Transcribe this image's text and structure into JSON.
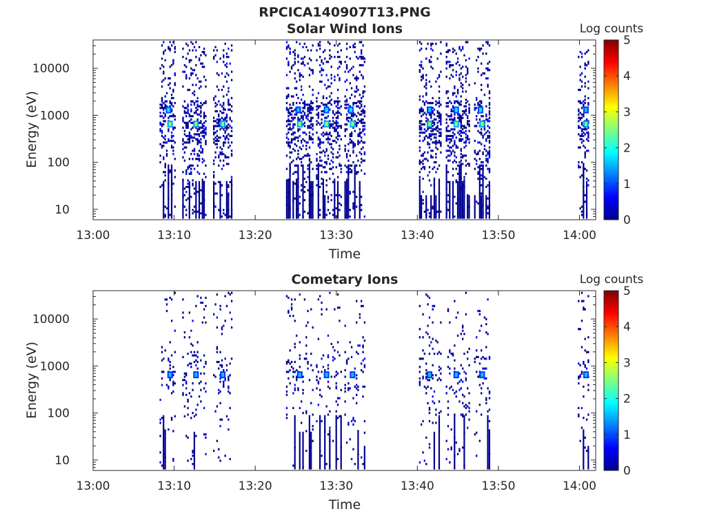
{
  "figure_title": "RPCICA140907T13.PNG",
  "colormap": [
    "#00008f",
    "#0000ff",
    "#0080ff",
    "#00ffff",
    "#80ff80",
    "#ffff00",
    "#ff8000",
    "#ff0000",
    "#800000"
  ],
  "chart_data": [
    {
      "type": "heatmap",
      "title": "Solar Wind Ions",
      "xlabel": "Time",
      "ylabel": "Energy (eV)",
      "x_ticks": [
        "13:00",
        "13:10",
        "13:20",
        "13:30",
        "13:40",
        "13:50",
        "14:00"
      ],
      "y_ticks": [
        "10",
        "100",
        "1000",
        "10000"
      ],
      "y_scale": "log",
      "ylim": [
        6,
        40000
      ],
      "colorbar": {
        "label": "Log counts",
        "ticks": [
          "0",
          "1",
          "2",
          "3",
          "4",
          "5"
        ],
        "range": [
          0,
          5
        ]
      },
      "scans": [
        {
          "t": [
            8.2,
            10.0
          ],
          "sparse": 1.0
        },
        {
          "t": [
            11.0,
            13.8
          ],
          "sparse": 1.0
        },
        {
          "t": [
            14.8,
            17.0
          ],
          "sparse": 1.0
        },
        {
          "t": [
            23.8,
            27.0
          ],
          "sparse": 1.0
        },
        {
          "t": [
            27.5,
            30.5
          ],
          "sparse": 1.0
        },
        {
          "t": [
            31.0,
            33.5
          ],
          "sparse": 1.0
        },
        {
          "t": [
            40.2,
            43.0
          ],
          "sparse": 1.0
        },
        {
          "t": [
            43.5,
            46.5
          ],
          "sparse": 1.0
        },
        {
          "t": [
            47.0,
            49.0
          ],
          "sparse": 1.0
        },
        {
          "t": [
            59.8,
            61.2
          ],
          "sparse": 1.0
        }
      ],
      "peaks": [
        {
          "time": 9.5,
          "energy": 650,
          "log_counts": 2.6
        },
        {
          "time": 9.3,
          "energy": 1300,
          "log_counts": 1.8
        },
        {
          "time": 12.7,
          "energy": 650,
          "log_counts": 2.5
        },
        {
          "time": 16.0,
          "energy": 650,
          "log_counts": 2.5
        },
        {
          "time": 25.5,
          "energy": 650,
          "log_counts": 2.6
        },
        {
          "time": 25.3,
          "energy": 1300,
          "log_counts": 1.6
        },
        {
          "time": 28.8,
          "energy": 650,
          "log_counts": 2.7
        },
        {
          "time": 28.8,
          "energy": 1300,
          "log_counts": 1.8
        },
        {
          "time": 32.0,
          "energy": 650,
          "log_counts": 2.7
        },
        {
          "time": 31.8,
          "energy": 1300,
          "log_counts": 1.8
        },
        {
          "time": 41.5,
          "energy": 650,
          "log_counts": 2.5
        },
        {
          "time": 41.5,
          "energy": 1300,
          "log_counts": 1.6
        },
        {
          "time": 44.8,
          "energy": 650,
          "log_counts": 2.6
        },
        {
          "time": 44.8,
          "energy": 1300,
          "log_counts": 1.8
        },
        {
          "time": 48.0,
          "energy": 650,
          "log_counts": 2.6
        },
        {
          "time": 47.8,
          "energy": 1300,
          "log_counts": 1.8
        },
        {
          "time": 60.8,
          "energy": 650,
          "log_counts": 2.4
        },
        {
          "time": 60.8,
          "energy": 1300,
          "log_counts": 1.6
        }
      ]
    },
    {
      "type": "heatmap",
      "title": "Cometary Ions",
      "xlabel": "Time",
      "ylabel": "Energy (eV)",
      "x_ticks": [
        "13:00",
        "13:10",
        "13:20",
        "13:30",
        "13:40",
        "13:50",
        "14:00"
      ],
      "y_ticks": [
        "10",
        "100",
        "1000",
        "10000"
      ],
      "y_scale": "log",
      "ylim": [
        6,
        40000
      ],
      "colorbar": {
        "label": "Log counts",
        "ticks": [
          "0",
          "1",
          "2",
          "3",
          "4",
          "5"
        ],
        "range": [
          0,
          5
        ]
      },
      "scans": [
        {
          "t": [
            8.2,
            10.0
          ],
          "sparse": 0.3
        },
        {
          "t": [
            11.0,
            13.8
          ],
          "sparse": 0.3
        },
        {
          "t": [
            14.8,
            17.0
          ],
          "sparse": 0.3
        },
        {
          "t": [
            23.8,
            27.0
          ],
          "sparse": 0.3
        },
        {
          "t": [
            27.5,
            30.5
          ],
          "sparse": 0.3
        },
        {
          "t": [
            31.0,
            33.5
          ],
          "sparse": 0.3
        },
        {
          "t": [
            40.2,
            43.0
          ],
          "sparse": 0.3
        },
        {
          "t": [
            43.5,
            46.5
          ],
          "sparse": 0.3
        },
        {
          "t": [
            47.0,
            49.0
          ],
          "sparse": 0.3
        },
        {
          "t": [
            59.8,
            61.2
          ],
          "sparse": 0.3
        }
      ],
      "peaks": [
        {
          "time": 9.5,
          "energy": 650,
          "log_counts": 1.6
        },
        {
          "time": 12.7,
          "energy": 650,
          "log_counts": 1.6
        },
        {
          "time": 16.0,
          "energy": 650,
          "log_counts": 1.6
        },
        {
          "time": 25.5,
          "energy": 650,
          "log_counts": 1.6
        },
        {
          "time": 28.8,
          "energy": 650,
          "log_counts": 1.6
        },
        {
          "time": 32.0,
          "energy": 650,
          "log_counts": 1.6
        },
        {
          "time": 41.5,
          "energy": 650,
          "log_counts": 1.6
        },
        {
          "time": 44.8,
          "energy": 650,
          "log_counts": 1.6
        },
        {
          "time": 48.0,
          "energy": 650,
          "log_counts": 1.6
        },
        {
          "time": 60.8,
          "energy": 650,
          "log_counts": 1.6
        }
      ]
    }
  ]
}
